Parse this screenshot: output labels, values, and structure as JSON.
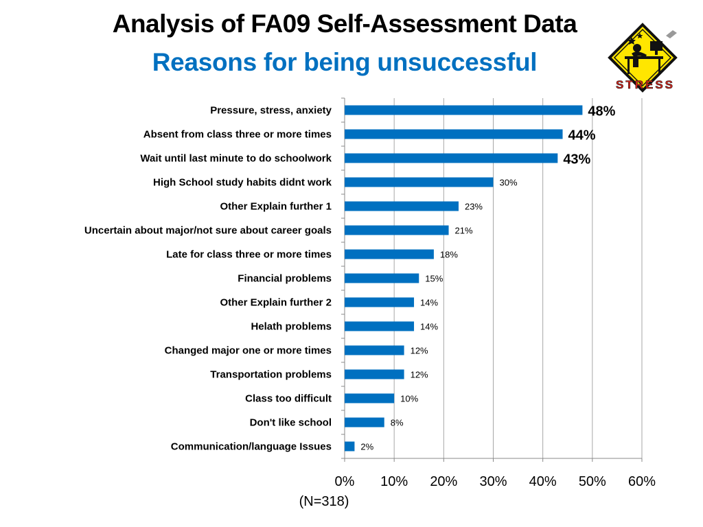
{
  "chart_data": {
    "type": "bar",
    "orientation": "horizontal",
    "title": "Analysis of FA09 Self-Assessment Data",
    "subtitle": "Reasons for being unsuccessful",
    "categories": [
      "Pressure, stress, anxiety",
      "Absent from class three or more times",
      "Wait until last minute to do schoolwork",
      "High School study habits didnt work",
      "Other Explain further 1",
      "Uncertain about major/not sure about career goals",
      "Late for class three or more times",
      "Financial problems",
      "Other Explain further 2",
      "Helath problems",
      "Changed major one or more times",
      "Transportation problems",
      "Class too difficult",
      "Don't like school",
      "Communication/language Issues"
    ],
    "values": [
      48,
      44,
      43,
      30,
      23,
      21,
      18,
      15,
      14,
      14,
      12,
      12,
      10,
      8,
      2
    ],
    "data_labels": [
      "48%",
      "44%",
      "43%",
      "30%",
      "23%",
      "21%",
      "18%",
      "15%",
      "14%",
      "14%",
      "12%",
      "12%",
      "10%",
      "8%",
      "2%"
    ],
    "highlighted_labels": 3,
    "xlim": [
      0,
      60
    ],
    "xticks": [
      "0%",
      "10%",
      "20%",
      "30%",
      "40%",
      "50%",
      "60%"
    ],
    "grid": true,
    "bar_color": "#0070C0",
    "note": "(N=318)"
  },
  "badge": {
    "text": "STRESS",
    "sign_color": "#FFE600",
    "text_color": "#D9251C",
    "icon": "stressed-person-at-desk-icon"
  }
}
